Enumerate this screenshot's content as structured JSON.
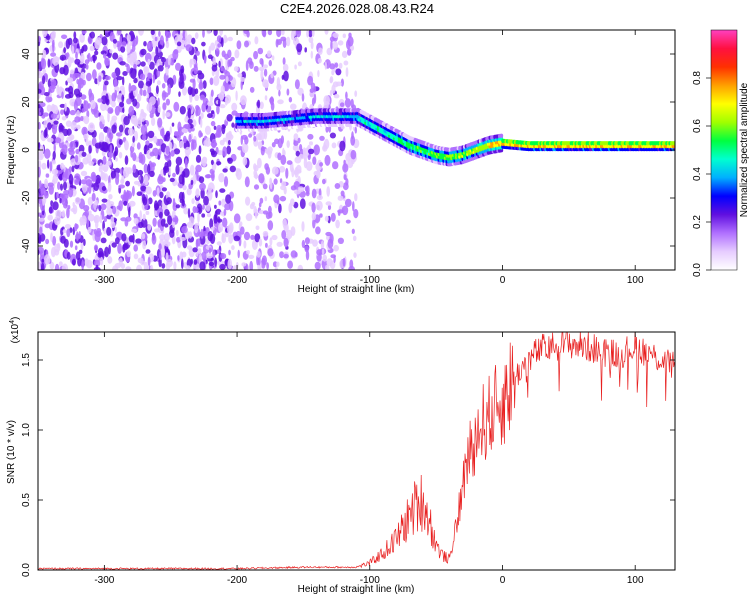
{
  "figure": {
    "title": "C2E4.2026.028.08.43.R24"
  },
  "chart_data": [
    {
      "type": "heatmap",
      "xlabel": "Height of straight line (km)",
      "ylabel": "Frequency (Hz)",
      "xlim": [
        -350,
        130
      ],
      "ylim": [
        -50,
        50
      ],
      "xticks": [
        -300,
        -200,
        -100,
        0,
        100
      ],
      "yticks": [
        -40,
        -20,
        0,
        20,
        40
      ],
      "colorbar": {
        "label": "Normalized spectral amplitude",
        "range": [
          0,
          1
        ],
        "ticks": [
          0.0,
          0.2,
          0.4,
          0.6,
          0.8
        ],
        "colors": [
          "#ffffff",
          "#e6ccff",
          "#b070ff",
          "#6010e0",
          "#0000ff",
          "#00b0ff",
          "#00ffd0",
          "#00ff40",
          "#a0ff00",
          "#ffff00",
          "#ffa000",
          "#ff3000",
          "#ff1040",
          "#ff40c0"
        ]
      },
      "ridge": {
        "x": [
          -200,
          -180,
          -160,
          -140,
          -120,
          -110,
          -100,
          -90,
          -80,
          -70,
          -60,
          -50,
          -40,
          -30,
          -20,
          -10,
          0,
          20,
          50,
          100,
          130
        ],
        "y": [
          12,
          12,
          13,
          14,
          14,
          14,
          11,
          8,
          5,
          2,
          0,
          -2,
          -3,
          -2,
          0,
          2,
          3,
          2,
          2,
          2,
          2
        ]
      }
    },
    {
      "type": "line",
      "xlabel": "Height of straight line (km)",
      "ylabel": "SNR (10 * v/v)",
      "y_scale_label": "(x10",
      "y_scale_exp": "4",
      "xlim": [
        -350,
        130
      ],
      "ylim": [
        0,
        1.7
      ],
      "xticks": [
        -300,
        -200,
        -100,
        0,
        100
      ],
      "yticks": [
        "0.0",
        "0.5",
        "1.0",
        "1.5"
      ],
      "color": "#e82020",
      "series": [
        {
          "x": [
            -350,
            -300,
            -250,
            -200,
            -150,
            -110,
            -100,
            -90,
            -80,
            -72,
            -66,
            -60,
            -55,
            -50,
            -45,
            -40,
            -35,
            -30,
            -25,
            -20,
            -15,
            -10,
            -5,
            0,
            5,
            10,
            15,
            20,
            25,
            30,
            40,
            50,
            60,
            70,
            80,
            90,
            100,
            110,
            120,
            130
          ],
          "values": [
            0.01,
            0.01,
            0.01,
            0.01,
            0.02,
            0.02,
            0.05,
            0.12,
            0.22,
            0.35,
            0.45,
            0.5,
            0.35,
            0.18,
            0.1,
            0.08,
            0.3,
            0.6,
            0.85,
            0.95,
            1.05,
            1.1,
            1.15,
            1.2,
            1.3,
            1.38,
            1.45,
            1.5,
            1.55,
            1.58,
            1.6,
            1.62,
            1.6,
            1.58,
            1.55,
            1.55,
            1.6,
            1.55,
            1.5,
            1.45
          ]
        }
      ]
    }
  ]
}
